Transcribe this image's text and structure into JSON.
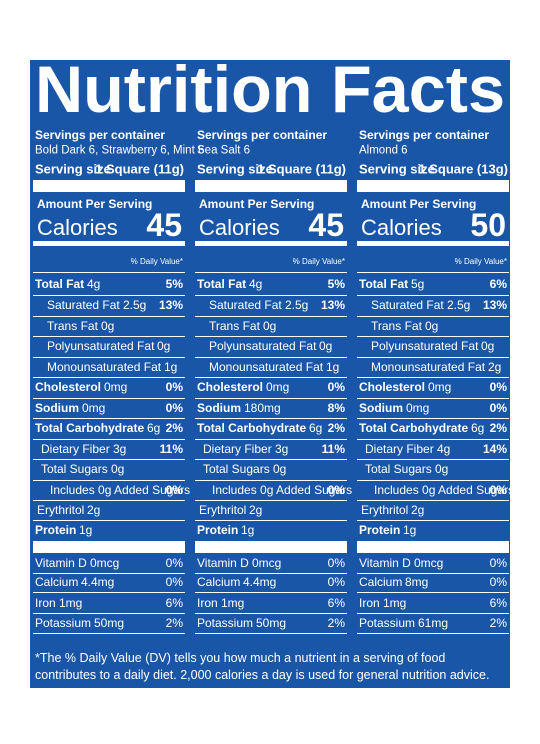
{
  "title": "Nutrition Facts",
  "columns": [
    {
      "servings_label": "Servings per container",
      "servings": "Bold Dark 6, Strawberry 6, Mint 6",
      "serving_size_label": "Serving size",
      "serving_size": "1 Square (11g)",
      "amount_label": "Amount Per Serving",
      "calories_label": "Calories",
      "calories": 45,
      "dv_header": "% Daily Value*",
      "nutrients": [
        {
          "name": "Total Fat",
          "amount": "4g",
          "dv": "5%"
        },
        {
          "name": "Saturated Fat",
          "amount": "2.5g",
          "dv": "13%"
        },
        {
          "name": "Trans Fat",
          "amount": "0g"
        },
        {
          "name": "Polyunsaturated Fat",
          "amount": "0g"
        },
        {
          "name": "Monounsaturated Fat",
          "amount": "1g"
        },
        {
          "name": "Cholesterol",
          "amount": "0mg",
          "dv": "0%"
        },
        {
          "name": "Sodium",
          "amount": "0mg",
          "dv": "0%"
        },
        {
          "name": "Total Carbohydrate",
          "amount": "6g",
          "dv": "2%"
        },
        {
          "name": "Dietary Fiber",
          "amount": "3g",
          "dv": "11%"
        },
        {
          "name": "Total Sugars",
          "amount": "0g"
        },
        {
          "name": "Includes 0g Added Sugars",
          "dv": "0%"
        },
        {
          "name": "Erythritol",
          "amount": "2g"
        },
        {
          "name": "Protein",
          "amount": "1g"
        }
      ],
      "vitamins": [
        {
          "name": "Vitamin D",
          "amount": "0mcg",
          "dv": "0%"
        },
        {
          "name": "Calcium",
          "amount": "4.4mg",
          "dv": "0%"
        },
        {
          "name": "Iron",
          "amount": "1mg",
          "dv": "6%"
        },
        {
          "name": "Potassium",
          "amount": "50mg",
          "dv": "2%"
        }
      ]
    },
    {
      "servings_label": "Servings per container",
      "servings": "Sea Salt 6",
      "serving_size_label": "Serving size",
      "serving_size": "1 Square (11g)",
      "amount_label": "Amount Per Serving",
      "calories_label": "Calories",
      "calories": 45,
      "dv_header": "% Daily Value*",
      "nutrients": [
        {
          "name": "Total Fat",
          "amount": "4g",
          "dv": "5%"
        },
        {
          "name": "Saturated Fat",
          "amount": "2.5g",
          "dv": "13%"
        },
        {
          "name": "Trans Fat",
          "amount": "0g"
        },
        {
          "name": "Polyunsaturated Fat",
          "amount": "0g"
        },
        {
          "name": "Monounsaturated Fat",
          "amount": "1g"
        },
        {
          "name": "Cholesterol",
          "amount": "0mg",
          "dv": "0%"
        },
        {
          "name": "Sodium",
          "amount": "180mg",
          "dv": "8%"
        },
        {
          "name": "Total Carbohydrate",
          "amount": "6g",
          "dv": "2%"
        },
        {
          "name": "Dietary Fiber",
          "amount": "3g",
          "dv": "11%"
        },
        {
          "name": "Total Sugars",
          "amount": "0g"
        },
        {
          "name": "Includes 0g Added Sugars",
          "dv": "0%"
        },
        {
          "name": "Erythritol",
          "amount": "2g"
        },
        {
          "name": "Protein",
          "amount": "1g"
        }
      ],
      "vitamins": [
        {
          "name": "Vitamin D",
          "amount": "0mcg",
          "dv": "0%"
        },
        {
          "name": "Calcium",
          "amount": "4.4mg",
          "dv": "0%"
        },
        {
          "name": "Iron",
          "amount": "1mg",
          "dv": "6%"
        },
        {
          "name": "Potassium",
          "amount": "50mg",
          "dv": "2%"
        }
      ]
    },
    {
      "servings_label": "Servings per container",
      "servings": "Almond 6",
      "serving_size_label": "Serving size",
      "serving_size": "1 Square (13g)",
      "amount_label": "Amount Per Serving",
      "calories_label": "Calories",
      "calories": 50,
      "dv_header": "% Daily Value*",
      "nutrients": [
        {
          "name": "Total Fat",
          "amount": "5g",
          "dv": "6%"
        },
        {
          "name": "Saturated Fat",
          "amount": "2.5g",
          "dv": "13%"
        },
        {
          "name": "Trans Fat",
          "amount": "0g"
        },
        {
          "name": "Polyunsaturated Fat",
          "amount": "0g"
        },
        {
          "name": "Monounsaturated Fat",
          "amount": "2g"
        },
        {
          "name": "Cholesterol",
          "amount": "0mg",
          "dv": "0%"
        },
        {
          "name": "Sodium",
          "amount": "0mg",
          "dv": "0%"
        },
        {
          "name": "Total Carbohydrate",
          "amount": "6g",
          "dv": "2%"
        },
        {
          "name": "Dietary Fiber",
          "amount": "4g",
          "dv": "14%"
        },
        {
          "name": "Total Sugars",
          "amount": "0g"
        },
        {
          "name": "Includes 0g Added Sugars",
          "dv": "0%"
        },
        {
          "name": "Erythritol",
          "amount": "2g"
        },
        {
          "name": "Protein",
          "amount": "1g"
        }
      ],
      "vitamins": [
        {
          "name": "Vitamin D",
          "amount": "0mcg",
          "dv": "0%"
        },
        {
          "name": "Calcium",
          "amount": "8mg",
          "dv": "0%"
        },
        {
          "name": "Iron",
          "amount": "1mg",
          "dv": "6%"
        },
        {
          "name": "Potassium",
          "amount": "61mg",
          "dv": "2%"
        }
      ]
    }
  ],
  "footnote": "*The % Daily Value (DV) tells you how much a nutrient in a serving of food contributes to a daily diet. 2,000 calories a day is used for general nutrition advice."
}
